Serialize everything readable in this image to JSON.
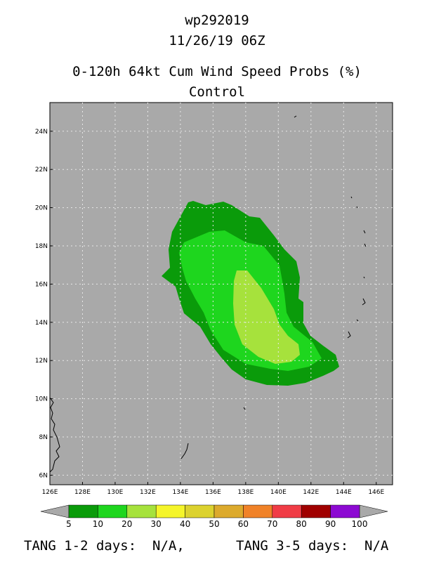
{
  "header": {
    "storm_id": "wp292019",
    "datetime": "11/26/19 06Z",
    "product": "0-120h 64kt Cum Wind Speed Probs (%)",
    "member": "Control"
  },
  "map": {
    "lon_range": [
      126,
      147
    ],
    "lat_range": [
      5.5,
      25.5
    ],
    "lon_ticks": [
      "126E",
      "128E",
      "130E",
      "132E",
      "134E",
      "136E",
      "138E",
      "140E",
      "142E",
      "144E",
      "146E"
    ],
    "lat_ticks": [
      "6N",
      "8N",
      "10N",
      "12N",
      "14N",
      "16N",
      "18N",
      "20N",
      "22N",
      "24N"
    ],
    "background_color": "#a9a9a9",
    "probability_regions": [
      {
        "range": "5-10",
        "color": "#0a9b0a"
      },
      {
        "range": "10-20",
        "color": "#1ed61e"
      },
      {
        "range": "20-30",
        "color": "#a6e23c"
      }
    ]
  },
  "colorbar": {
    "levels": [
      "5",
      "10",
      "20",
      "30",
      "40",
      "50",
      "60",
      "70",
      "80",
      "90",
      "100"
    ],
    "colors": [
      "#0a9b0a",
      "#1ed61e",
      "#a6e23c",
      "#f5f52a",
      "#dcd22f",
      "#dcaa2d",
      "#f08228",
      "#f03c46",
      "#a00000",
      "#8c0ad2"
    ],
    "end_color": "#a9a9a9"
  },
  "footer": {
    "left": "TANG 1-2 days:  N/A,",
    "right": "TANG 3-5 days:  N/A"
  }
}
